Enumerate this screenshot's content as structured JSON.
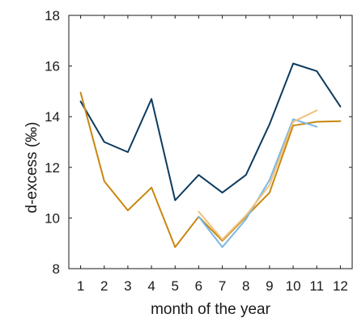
{
  "chart_data": {
    "type": "line",
    "xlabel": "month of the year",
    "ylabel": "d-excess (‰)",
    "xlim": [
      0.5,
      12.5
    ],
    "ylim": [
      8,
      18
    ],
    "x_ticks": [
      1,
      2,
      3,
      4,
      5,
      6,
      7,
      8,
      9,
      10,
      11,
      12
    ],
    "y_ticks": [
      8,
      10,
      12,
      14,
      16,
      18
    ],
    "grid": false,
    "box": true,
    "series": [
      {
        "color": "#0d3b5e",
        "x": [
          1,
          2,
          3,
          4,
          5,
          6,
          7,
          8,
          9,
          10,
          11,
          12
        ],
        "values": [
          14.6,
          13.0,
          12.6,
          14.7,
          10.7,
          11.7,
          11.0,
          11.7,
          13.7,
          16.1,
          15.8,
          14.4
        ]
      },
      {
        "color": "#c8870e",
        "x": [
          1,
          2,
          3,
          4,
          5,
          6,
          7,
          8,
          9,
          10,
          11,
          12
        ],
        "values": [
          14.95,
          11.45,
          10.3,
          11.2,
          8.85,
          10.05,
          9.1,
          10.05,
          11.0,
          13.65,
          13.8,
          13.82
        ]
      },
      {
        "color": "#7ab8e3",
        "x": [
          6,
          7,
          8,
          9,
          10,
          11
        ],
        "values": [
          10.05,
          8.85,
          9.95,
          11.5,
          13.9,
          13.6
        ]
      },
      {
        "color": "#f1c07a",
        "x": [
          6,
          7,
          8,
          9,
          10,
          11
        ],
        "values": [
          10.25,
          9.15,
          10.1,
          11.3,
          13.8,
          14.25
        ]
      }
    ]
  }
}
